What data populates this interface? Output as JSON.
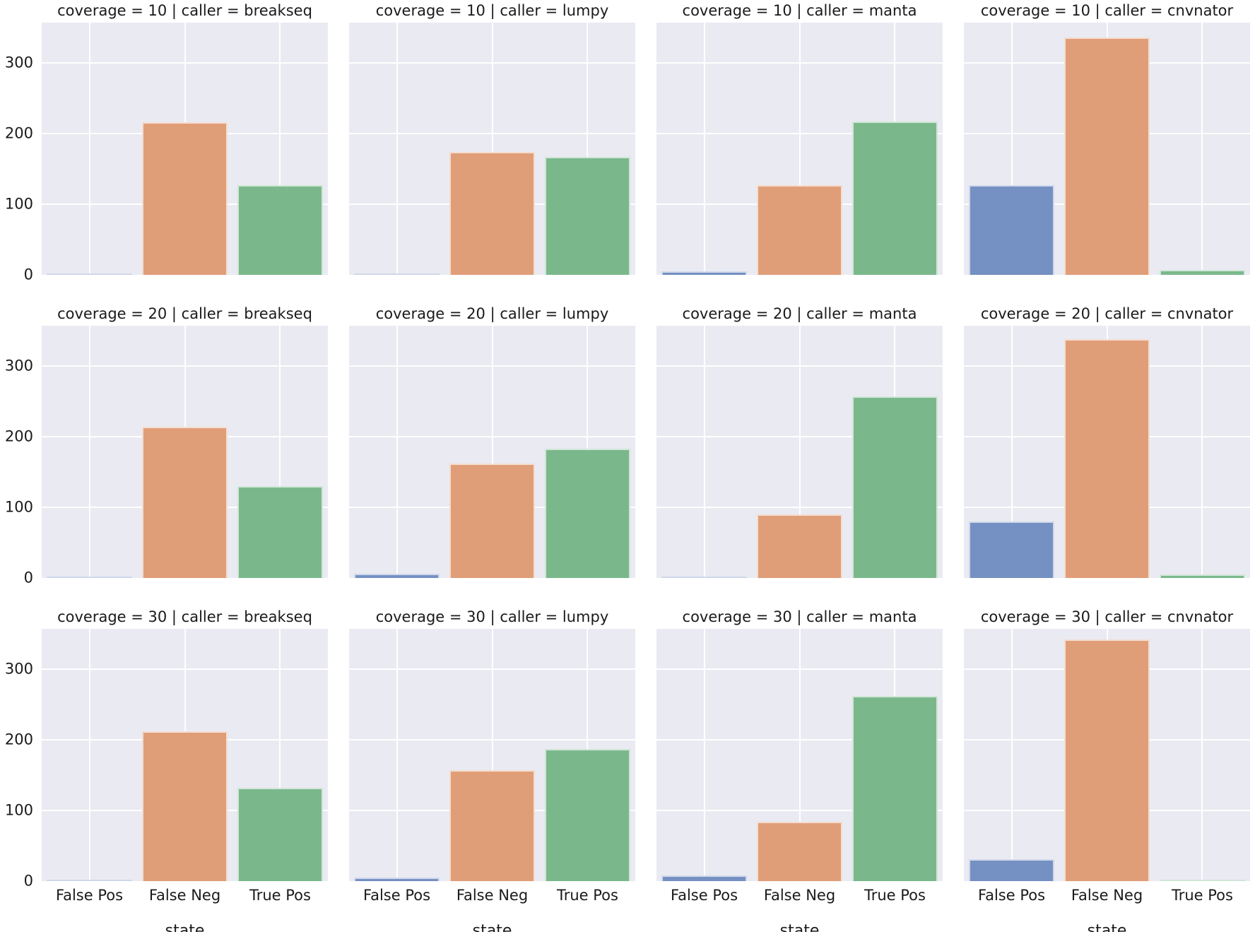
{
  "chart_data": {
    "type": "bar",
    "facet_layout": {
      "rows_variable": "coverage",
      "cols_variable": "caller",
      "n_rows": 3,
      "n_cols": 4
    },
    "categories": [
      "False Pos",
      "False Neg",
      "True Pos"
    ],
    "xlabel": "state",
    "ylabel": "",
    "yticks": [
      0,
      100,
      200,
      300
    ],
    "ylim": [
      0,
      357
    ],
    "grid": true,
    "axes_background": "#eaeaf2",
    "gridline_color": "#ffffff",
    "bar_colors": [
      "#7590c2",
      "#e09e78",
      "#7ab88c"
    ],
    "category_centers_pct": [
      16.67,
      50,
      83.33
    ],
    "facets": [
      {
        "title": "coverage = 10 | caller = breakseq",
        "coverage": 10,
        "caller": "breakseq",
        "values": [
          1,
          216,
          127
        ]
      },
      {
        "title": "coverage = 10 | caller = lumpy",
        "coverage": 10,
        "caller": "lumpy",
        "values": [
          2,
          174,
          167
        ]
      },
      {
        "title": "coverage = 10 | caller = manta",
        "coverage": 10,
        "caller": "manta",
        "values": [
          5,
          127,
          217
        ]
      },
      {
        "title": "coverage = 10 | caller = cnvnator",
        "coverage": 10,
        "caller": "cnvnator",
        "values": [
          127,
          336,
          7
        ]
      },
      {
        "title": "coverage = 20 | caller = breakseq",
        "coverage": 20,
        "caller": "breakseq",
        "values": [
          2,
          214,
          130
        ]
      },
      {
        "title": "coverage = 20 | caller = lumpy",
        "coverage": 20,
        "caller": "lumpy",
        "values": [
          6,
          162,
          183
        ]
      },
      {
        "title": "coverage = 20 | caller = manta",
        "coverage": 20,
        "caller": "manta",
        "values": [
          1,
          90,
          257
        ]
      },
      {
        "title": "coverage = 20 | caller = cnvnator",
        "coverage": 20,
        "caller": "cnvnator",
        "values": [
          80,
          338,
          5
        ]
      },
      {
        "title": "coverage = 30 | caller = breakseq",
        "coverage": 30,
        "caller": "breakseq",
        "values": [
          1,
          212,
          132
        ]
      },
      {
        "title": "coverage = 30 | caller = lumpy",
        "coverage": 30,
        "caller": "lumpy",
        "values": [
          5,
          157,
          187
        ]
      },
      {
        "title": "coverage = 30 | caller = manta",
        "coverage": 30,
        "caller": "manta",
        "values": [
          8,
          84,
          262
        ]
      },
      {
        "title": "coverage = 30 | caller = cnvnator",
        "coverage": 30,
        "caller": "cnvnator",
        "values": [
          31,
          342,
          2
        ]
      }
    ]
  }
}
